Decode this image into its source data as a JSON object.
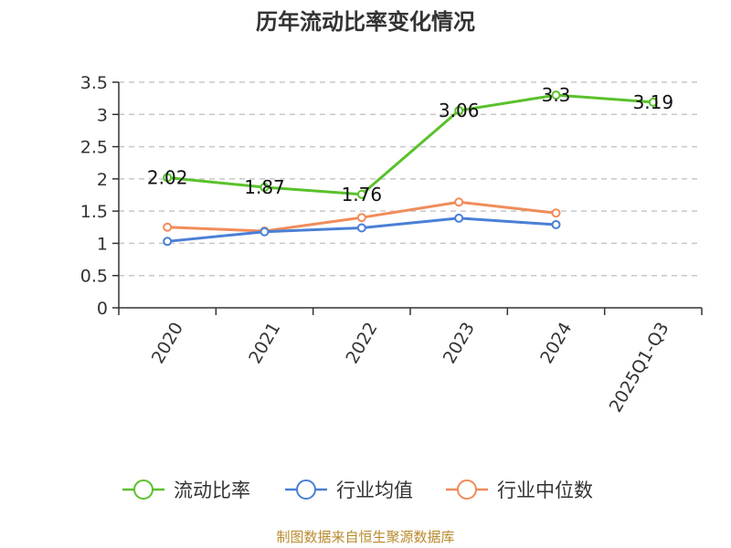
{
  "chart_data": {
    "type": "line",
    "title": "历年流动比率变化情况",
    "categories": [
      "2020",
      "2021",
      "2022",
      "2023",
      "2024",
      "2025Q1-Q3"
    ],
    "ylim": [
      0,
      3.5
    ],
    "yticks": [
      "0",
      "0.5",
      "1",
      "1.5",
      "2",
      "2.5",
      "3",
      "3.5"
    ],
    "grid": "horizontal-dashed",
    "legend_position": "bottom",
    "series": [
      {
        "name": "流动比率",
        "color": "#5ac12b",
        "values": [
          2.02,
          1.87,
          1.76,
          3.06,
          3.3,
          3.19
        ],
        "labels": [
          "2.02",
          "1.87",
          "1.76",
          "3.06",
          "3.3",
          "3.19"
        ]
      },
      {
        "name": "行业均值",
        "color": "#4a7fd6",
        "values": [
          1.03,
          1.18,
          1.24,
          1.39,
          1.29,
          null
        ]
      },
      {
        "name": "行业中位数",
        "color": "#f08c5a",
        "values": [
          1.25,
          1.19,
          1.4,
          1.64,
          1.47,
          null
        ]
      }
    ],
    "source": "制图数据来自恒生聚源数据库"
  }
}
